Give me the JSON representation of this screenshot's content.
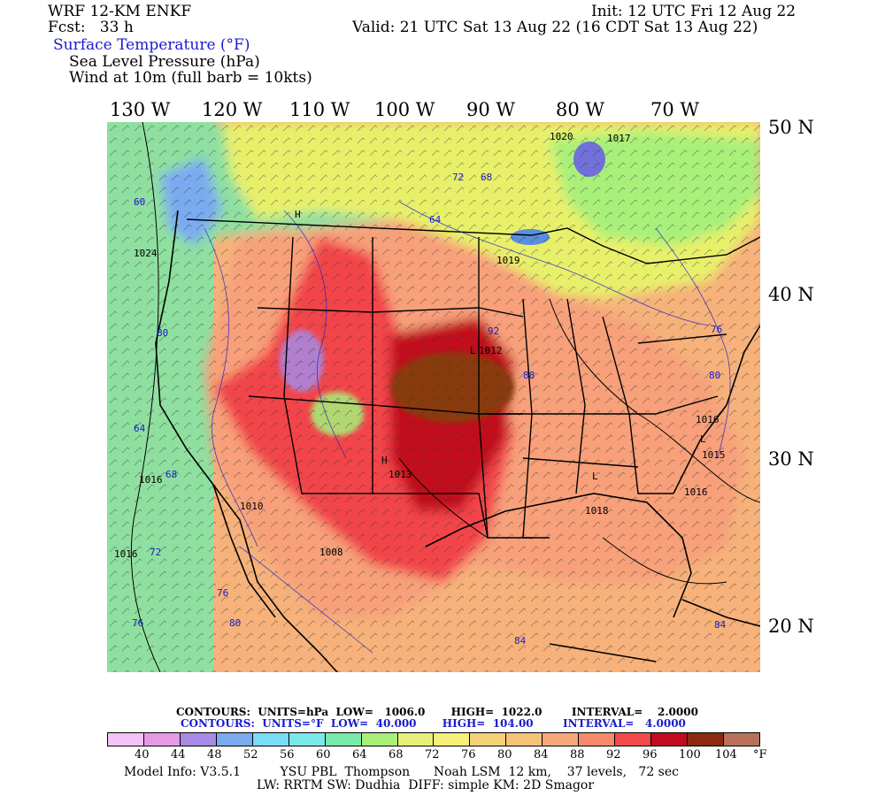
{
  "header": {
    "model": "WRF 12-KM ENKF",
    "fcst": "Fcst:   33 h",
    "init": "Init: 12 UTC Fri 12 Aug 22",
    "valid": "Valid: 21 UTC Sat 13 Aug 22 (16 CDT Sat 13 Aug 22)",
    "field1": "Surface Temperature (°F)",
    "field2": "Sea Level Pressure (hPa)",
    "field3": "Wind at 10m (full barb = 10kts)"
  },
  "lon_labels": [
    "130 W",
    "120 W",
    "110 W",
    "100 W",
    "90 W",
    "80 W",
    "70 W"
  ],
  "lat_labels": [
    "50 N",
    "40 N",
    "30 N",
    "20 N"
  ],
  "colors": {
    "ocean_west": "#8fe0a0",
    "ocean_east": "#f6b27a",
    "land_warm": "#f7a07a",
    "land_hot": "#f2444a",
    "land_hottest": "#c20b1e",
    "core": "#8a3a10",
    "lake": "#7070d8",
    "cool_north": "#e8f06a"
  },
  "map_labels": {
    "h_high": "H",
    "l_low": "L",
    "p1012": "1012",
    "p1016": "1016",
    "p1020": "1020",
    "p1017": "1017",
    "p1015": "1015",
    "p1008": "1008",
    "p1010": "1010",
    "p1018": "1018",
    "p1013": "1013",
    "p1019": "1019",
    "p1024": "1024",
    "t60": "60",
    "t64": "64",
    "t68": "68",
    "t72": "72",
    "t76": "76",
    "t80": "80",
    "t84": "84",
    "t88": "88",
    "t92": "92"
  },
  "footer": {
    "contours_hpa": "CONTOURS:  UNITS=hPa  LOW=   1006.0       HIGH=  1022.0        INTERVAL=    2.0000",
    "contours_f": "CONTOURS:  UNITS=°F  LOW=  40.000       HIGH=  104.00        INTERVAL=   4.0000",
    "model_info": "Model Info: V3.5.1          YSU PBL  Thompson      Noah LSM  12 km,    37 levels,   72 sec",
    "physics": "LW: RRTM SW: Dudhia  DIFF: simple KM: 2D Smagor"
  },
  "colorbar": {
    "colors": [
      "#f5c2f5",
      "#e69ae6",
      "#a68ae6",
      "#7aaaf0",
      "#7adcf5",
      "#7ae8e8",
      "#7ae8a8",
      "#a8f07a",
      "#e8f07a",
      "#f5f07a",
      "#f5d27a",
      "#f5c27a",
      "#f5a87a",
      "#f58a6a",
      "#f24a4a",
      "#c20b1e",
      "#8a2a10",
      "#b8705a"
    ],
    "ticks": [
      "40",
      "44",
      "48",
      "52",
      "56",
      "60",
      "64",
      "68",
      "72",
      "76",
      "80",
      "84",
      "88",
      "92",
      "96",
      "100",
      "104"
    ],
    "unit": "°F"
  }
}
